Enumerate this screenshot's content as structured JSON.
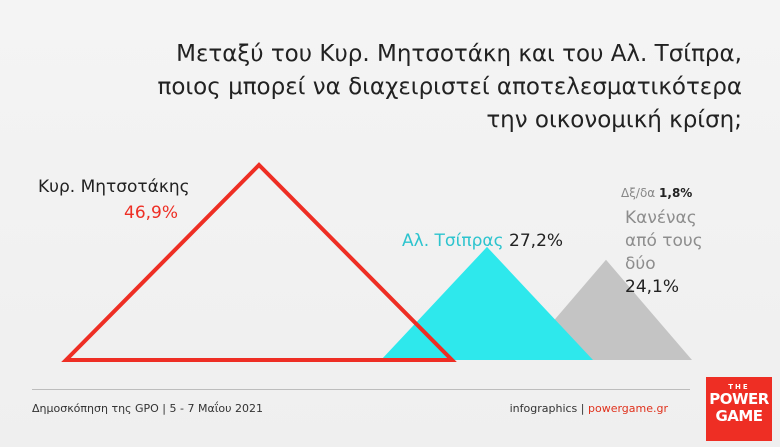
{
  "title_lines": [
    "Μεταξύ του Κυρ. Μητσοτάκη και του Αλ. Τσίπρα,",
    "ποιος μπορεί να διαχειριστεί αποτελεσματικότερα",
    "την οικονομική κρίση;"
  ],
  "chart_data": {
    "type": "area",
    "style": "triangles",
    "series": [
      {
        "name": "Κυρ. Μητσοτάκης",
        "value": 46.9,
        "value_label": "46,9%",
        "color": "#ee2e24",
        "fill": "none"
      },
      {
        "name": "Αλ. Τσίπρας",
        "value": 27.2,
        "value_label": "27,2%",
        "color": "#2ee8ec",
        "fill": "solid"
      },
      {
        "name_lines": [
          "Κανένας",
          "από τους",
          "δύο"
        ],
        "value": 24.1,
        "value_label": "24,1%",
        "color": "#c4c4c4",
        "fill": "solid"
      }
    ],
    "other": {
      "name": "Δξ/δα",
      "value": 1.8,
      "value_label": "1,8%"
    }
  },
  "footer": {
    "source": "Δημοσκόπηση της GPO | 5 - 7 Μαΐου 2021",
    "credit_prefix": "infographics | ",
    "credit_site": "powergame.gr"
  },
  "logo": {
    "top": "THE",
    "line1": "POWER",
    "line2": "GAME"
  }
}
